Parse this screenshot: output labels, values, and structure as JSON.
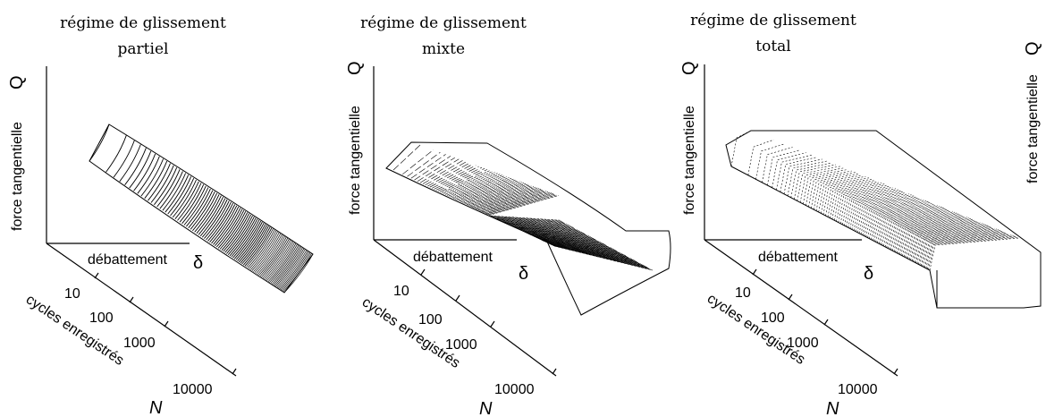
{
  "panels": [
    {
      "key": "partial",
      "title_line1": "régime de glissement",
      "title_line2": "partiel",
      "y_label": "force tangentielle",
      "y_symbol": "Q",
      "x_label": "débattement",
      "x_symbol": "δ",
      "n_label": "cycles enregistrés",
      "n_symbol": "N",
      "ticks": [
        "10",
        "100",
        "1000",
        "10000"
      ]
    },
    {
      "key": "mixed",
      "title_line1": "régime de glissement",
      "title_line2": "mixte",
      "y_label": "force tangentielle",
      "y_symbol": "Q",
      "x_label": "débattement",
      "x_symbol": "δ",
      "n_label": "cycles enregistrés",
      "n_symbol": "N",
      "ticks": [
        "10",
        "100",
        "1000",
        "10000"
      ]
    },
    {
      "key": "total",
      "title_line1": "régime de glissement",
      "title_line2": "total",
      "y_label": "force tangentielle",
      "y_symbol": "Q",
      "x_label": "débattement",
      "x_symbol": "δ",
      "n_label": "cycles enregistrés",
      "n_symbol": "N",
      "ticks": [
        "10",
        "100",
        "1000",
        "10000"
      ]
    }
  ],
  "extra_y_label": "force tangentielle",
  "extra_y_symbol": "Q"
}
